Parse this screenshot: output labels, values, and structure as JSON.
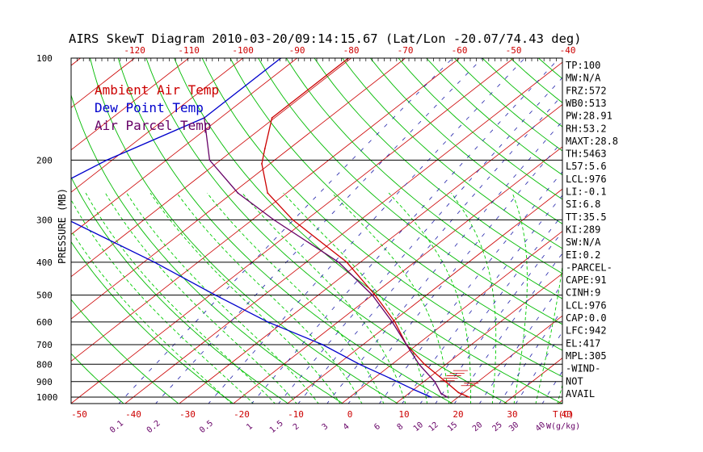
{
  "chart_data": {
    "type": "line",
    "title": "AIRS SkewT Diagram 2010-03-20/09:14:15.67 (Lat/Lon -20.07/74.43 deg)",
    "ylabel": "PRESSURE (MB)",
    "xlabel_bottom": "T(C)",
    "xlabel_mixing": "W(g/kg)",
    "y_scale": "log",
    "ylim": [
      1050,
      100
    ],
    "pressure_ticks": [
      100,
      200,
      300,
      400,
      500,
      600,
      700,
      800,
      900,
      1000
    ],
    "top_temperature_ticks": [
      -120,
      -110,
      -100,
      -90,
      -80,
      -70,
      -60,
      -50,
      -40
    ],
    "bottom_temperature_ticks": [
      -50,
      -40,
      -30,
      -20,
      -10,
      0,
      10,
      20,
      30,
      40
    ],
    "mixing_ratio_ticks": [
      "0.1",
      "0.2",
      "0.5",
      "1",
      "1.5",
      "2",
      "3",
      "4",
      "6",
      "8",
      "10",
      "12",
      "15",
      "20",
      "25",
      "30",
      "40"
    ],
    "legend": [
      {
        "label": "Ambient Air Temp",
        "color": "#cc0000"
      },
      {
        "label": "Dew Point Temp",
        "color": "#0000cc"
      },
      {
        "label": "Air Parcel Temp",
        "color": "#660066"
      }
    ],
    "grid": true,
    "colors": {
      "isotherm": "#cc0000",
      "dry_adiabat": "#00bb00",
      "moist_adiabat": "#00cc00",
      "mixing_ratio": "#2222aa",
      "isobar": "#000000",
      "wind_barb": "#cc0000"
    },
    "series": [
      {
        "name": "Ambient Air Temp",
        "points": [
          {
            "p": 100,
            "t": -80.5
          },
          {
            "p": 150,
            "t": -80.5
          },
          {
            "p": 185,
            "t": -74.5
          },
          {
            "p": 205,
            "t": -71.5
          },
          {
            "p": 250,
            "t": -63.5
          },
          {
            "p": 300,
            "t": -52.5
          },
          {
            "p": 400,
            "t": -32.5
          },
          {
            "p": 500,
            "t": -19.5
          },
          {
            "p": 600,
            "t": -9.5
          },
          {
            "p": 700,
            "t": -2.0
          },
          {
            "p": 800,
            "t": 6.0
          },
          {
            "p": 900,
            "t": 14.0
          },
          {
            "p": 970,
            "t": 19.0
          },
          {
            "p": 1000,
            "t": 22.0
          }
        ]
      },
      {
        "name": "Dew Point Temp",
        "points": [
          {
            "p": 100,
            "t": -93.0
          },
          {
            "p": 150,
            "t": -93.0
          },
          {
            "p": 200,
            "t": -101.0
          },
          {
            "p": 250,
            "t": -105.0
          },
          {
            "p": 300,
            "t": -94.0
          },
          {
            "p": 400,
            "t": -68.0
          },
          {
            "p": 500,
            "t": -49.0
          },
          {
            "p": 600,
            "t": -33.0
          },
          {
            "p": 700,
            "t": -17.5
          },
          {
            "p": 800,
            "t": -6.0
          },
          {
            "p": 880,
            "t": 3.0
          },
          {
            "p": 950,
            "t": 10.0
          },
          {
            "p": 1000,
            "t": 15.0
          }
        ]
      },
      {
        "name": "Air Parcel Temp",
        "points": [
          {
            "p": 150,
            "t": -93.0
          },
          {
            "p": 200,
            "t": -82.0
          },
          {
            "p": 250,
            "t": -69.0
          },
          {
            "p": 300,
            "t": -56.0
          },
          {
            "p": 400,
            "t": -34.0
          },
          {
            "p": 500,
            "t": -20.0
          },
          {
            "p": 600,
            "t": -10.0
          },
          {
            "p": 700,
            "t": -2.0
          },
          {
            "p": 800,
            "t": 5.0
          },
          {
            "p": 900,
            "t": 12.0
          },
          {
            "p": 976,
            "t": 16.0
          },
          {
            "p": 1000,
            "t": 18.0
          }
        ]
      }
    ],
    "wind_barb_levels": [
      835,
      850,
      865,
      880,
      895,
      910,
      925
    ],
    "indices": [
      "TP:100",
      "MW:N/A",
      "FRZ:572",
      "WB0:513",
      "PW:28.91",
      "RH:53.2",
      "MAXT:28.8",
      "TH:5463",
      "L57:5.6",
      "LCL:976",
      "LI:-0.1",
      "SI:6.8",
      "TT:35.5",
      "KI:289",
      "SW:N/A",
      "EI:0.2",
      "-PARCEL-",
      "CAPE:91",
      "CINH:9",
      "LCL:976",
      "CAP:0.0",
      "LFC:942",
      "EL:417",
      "MPL:305",
      "-WIND-",
      "NOT",
      "AVAIL"
    ]
  }
}
